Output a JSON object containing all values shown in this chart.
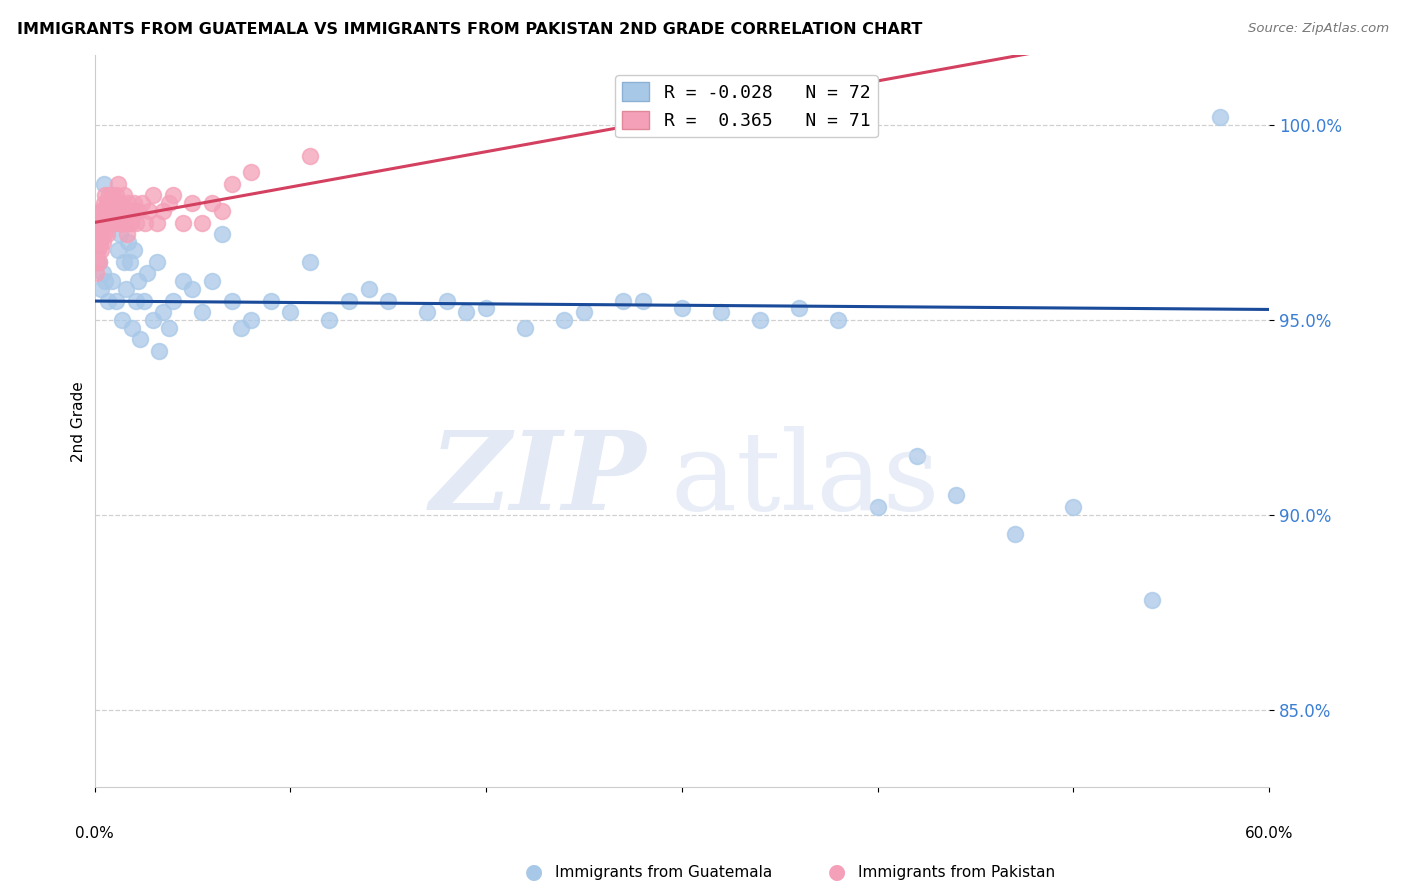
{
  "title": "IMMIGRANTS FROM GUATEMALA VS IMMIGRANTS FROM PAKISTAN 2ND GRADE CORRELATION CHART",
  "source": "Source: ZipAtlas.com",
  "ylabel": "2nd Grade",
  "xmin": 0.0,
  "xmax": 60.0,
  "ymin": 83.0,
  "ymax": 101.8,
  "yticks": [
    85.0,
    90.0,
    95.0,
    100.0
  ],
  "guatemala_color": "#a8c8e8",
  "pakistan_color": "#f4a0b8",
  "guatemala_line_color": "#1a4a9a",
  "pakistan_line_color": "#d44060",
  "guatemala_R": -0.028,
  "pakistan_R": 0.365,
  "guatemala_N": 72,
  "pakistan_N": 71,
  "guatemala_x": [
    0.1,
    0.15,
    0.2,
    0.25,
    0.3,
    0.35,
    0.4,
    0.45,
    0.5,
    0.55,
    0.6,
    0.7,
    0.8,
    0.9,
    1.0,
    1.1,
    1.2,
    1.3,
    1.4,
    1.5,
    1.6,
    1.7,
    1.8,
    1.9,
    2.0,
    2.1,
    2.2,
    2.3,
    2.5,
    2.7,
    3.0,
    3.2,
    3.5,
    3.8,
    4.0,
    4.5,
    5.0,
    5.5,
    6.0,
    6.5,
    7.0,
    7.5,
    8.0,
    9.0,
    10.0,
    11.0,
    12.0,
    13.0,
    14.0,
    15.0,
    17.0,
    18.0,
    20.0,
    22.0,
    24.0,
    25.0,
    27.0,
    28.0,
    30.0,
    32.0,
    34.0,
    36.0,
    38.0,
    40.0,
    42.0,
    44.0,
    47.0,
    50.0,
    54.0,
    57.5,
    3.3,
    19.0
  ],
  "guatemala_y": [
    96.8,
    97.5,
    97.2,
    96.5,
    97.0,
    95.8,
    97.8,
    96.2,
    98.5,
    96.0,
    97.5,
    95.5,
    97.8,
    96.0,
    97.5,
    95.5,
    96.8,
    97.2,
    95.0,
    96.5,
    95.8,
    97.0,
    96.5,
    94.8,
    96.8,
    95.5,
    96.0,
    94.5,
    95.5,
    96.2,
    95.0,
    96.5,
    95.2,
    94.8,
    95.5,
    96.0,
    95.8,
    95.2,
    96.0,
    97.2,
    95.5,
    94.8,
    95.0,
    95.5,
    95.2,
    96.5,
    95.0,
    95.5,
    95.8,
    95.5,
    95.2,
    95.5,
    95.3,
    94.8,
    95.0,
    95.2,
    95.5,
    95.5,
    95.3,
    95.2,
    95.0,
    95.3,
    95.0,
    90.2,
    91.5,
    90.5,
    89.5,
    90.2,
    87.8,
    100.2,
    94.2,
    95.2
  ],
  "pakistan_x": [
    0.05,
    0.1,
    0.12,
    0.15,
    0.18,
    0.2,
    0.22,
    0.25,
    0.28,
    0.3,
    0.32,
    0.35,
    0.38,
    0.4,
    0.42,
    0.45,
    0.48,
    0.5,
    0.52,
    0.55,
    0.58,
    0.6,
    0.62,
    0.65,
    0.68,
    0.7,
    0.72,
    0.75,
    0.78,
    0.8,
    0.85,
    0.9,
    0.95,
    1.0,
    1.05,
    1.1,
    1.15,
    1.2,
    1.25,
    1.3,
    1.35,
    1.4,
    1.45,
    1.5,
    1.55,
    1.6,
    1.65,
    1.7,
    1.75,
    1.8,
    1.85,
    1.9,
    2.0,
    2.1,
    2.2,
    2.4,
    2.6,
    2.8,
    3.0,
    3.2,
    3.5,
    3.8,
    4.0,
    4.5,
    5.0,
    5.5,
    6.0,
    6.5,
    7.0,
    8.0,
    11.0
  ],
  "pakistan_y": [
    96.2,
    96.8,
    96.5,
    97.0,
    96.8,
    97.2,
    96.5,
    97.5,
    97.0,
    97.8,
    96.8,
    97.2,
    97.5,
    97.8,
    97.0,
    97.5,
    97.2,
    98.0,
    97.5,
    98.2,
    97.8,
    97.5,
    98.0,
    97.2,
    97.8,
    98.0,
    97.5,
    98.2,
    97.5,
    98.0,
    97.8,
    98.2,
    97.5,
    98.0,
    97.8,
    98.2,
    97.8,
    98.5,
    97.5,
    98.0,
    97.5,
    97.8,
    97.5,
    98.2,
    97.5,
    97.8,
    97.2,
    98.0,
    97.5,
    97.8,
    97.5,
    97.8,
    98.0,
    97.5,
    97.8,
    98.0,
    97.5,
    97.8,
    98.2,
    97.5,
    97.8,
    98.0,
    98.2,
    97.5,
    98.0,
    97.5,
    98.0,
    97.8,
    98.5,
    98.8,
    99.2
  ],
  "background_color": "#ffffff",
  "grid_color": "#d0d0d0"
}
